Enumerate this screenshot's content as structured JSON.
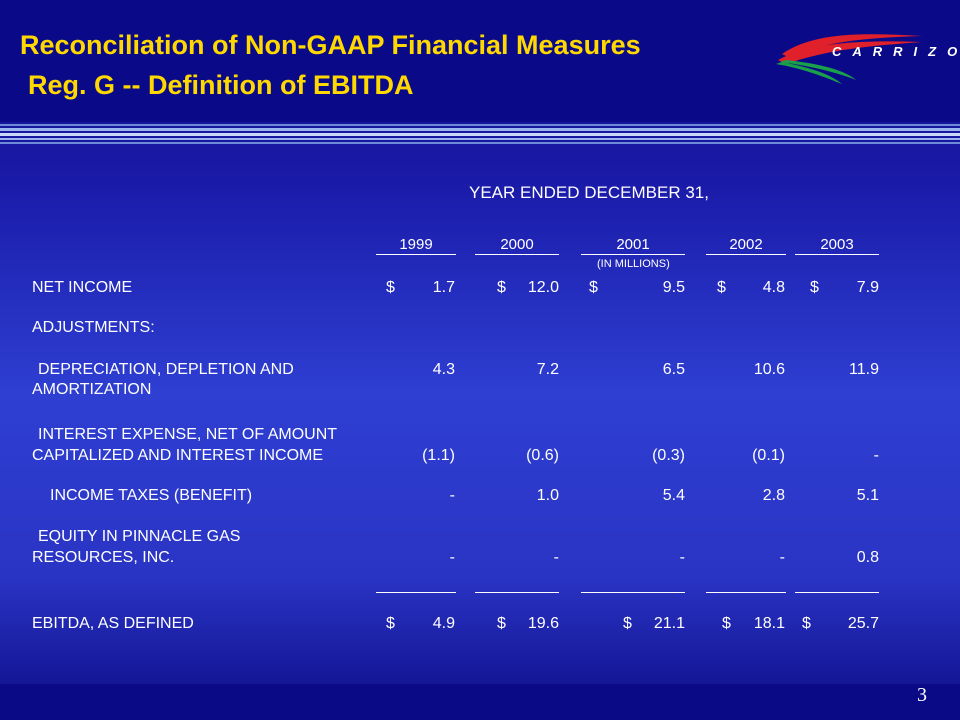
{
  "header": {
    "title_line1": "Reconciliation of Non-GAAP Financial Measures",
    "title_line2": "Reg. G -- Definition of EBITDA",
    "logo_text": "CARRIZO",
    "title_color": "#ffd800",
    "background_color": "#0a0a88"
  },
  "table": {
    "period_heading": "YEAR ENDED DECEMBER 31,",
    "units_note": "(IN MILLIONS)",
    "columns": [
      "1999",
      "2000",
      "2001",
      "2002",
      "2003"
    ],
    "rows": [
      {
        "label": "NET INCOME",
        "currency": "$",
        "values": [
          "1.7",
          "12.0",
          "9.5",
          "4.8",
          "7.9"
        ]
      },
      {
        "label": "ADJUSTMENTS:",
        "values": []
      },
      {
        "label_line1": "DEPRECIATION, DEPLETION AND",
        "label_line2": "AMORTIZATION",
        "values": [
          "4.3",
          "7.2",
          "6.5",
          "10.6",
          "11.9"
        ]
      },
      {
        "label_line1": "INTEREST EXPENSE, NET OF AMOUNT",
        "label_line2": "CAPITALIZED AND INTEREST INCOME",
        "values": [
          "(1.1)",
          "(0.6)",
          "(0.3)",
          "(0.1)",
          "-"
        ]
      },
      {
        "label": "INCOME TAXES (BENEFIT)",
        "values": [
          "-",
          "1.0",
          "5.4",
          "2.8",
          "5.1"
        ]
      },
      {
        "label_line1": "EQUITY IN PINNACLE GAS",
        "label_line2": "RESOURCES, INC.",
        "values": [
          "-",
          "-",
          "-",
          "-",
          "0.8"
        ]
      },
      {
        "label": "EBITDA, AS DEFINED",
        "currency": "$",
        "values": [
          "4.9",
          "19.6",
          "21.1",
          "18.1",
          "25.7"
        ]
      }
    ]
  },
  "footer": {
    "page_number": "3"
  }
}
